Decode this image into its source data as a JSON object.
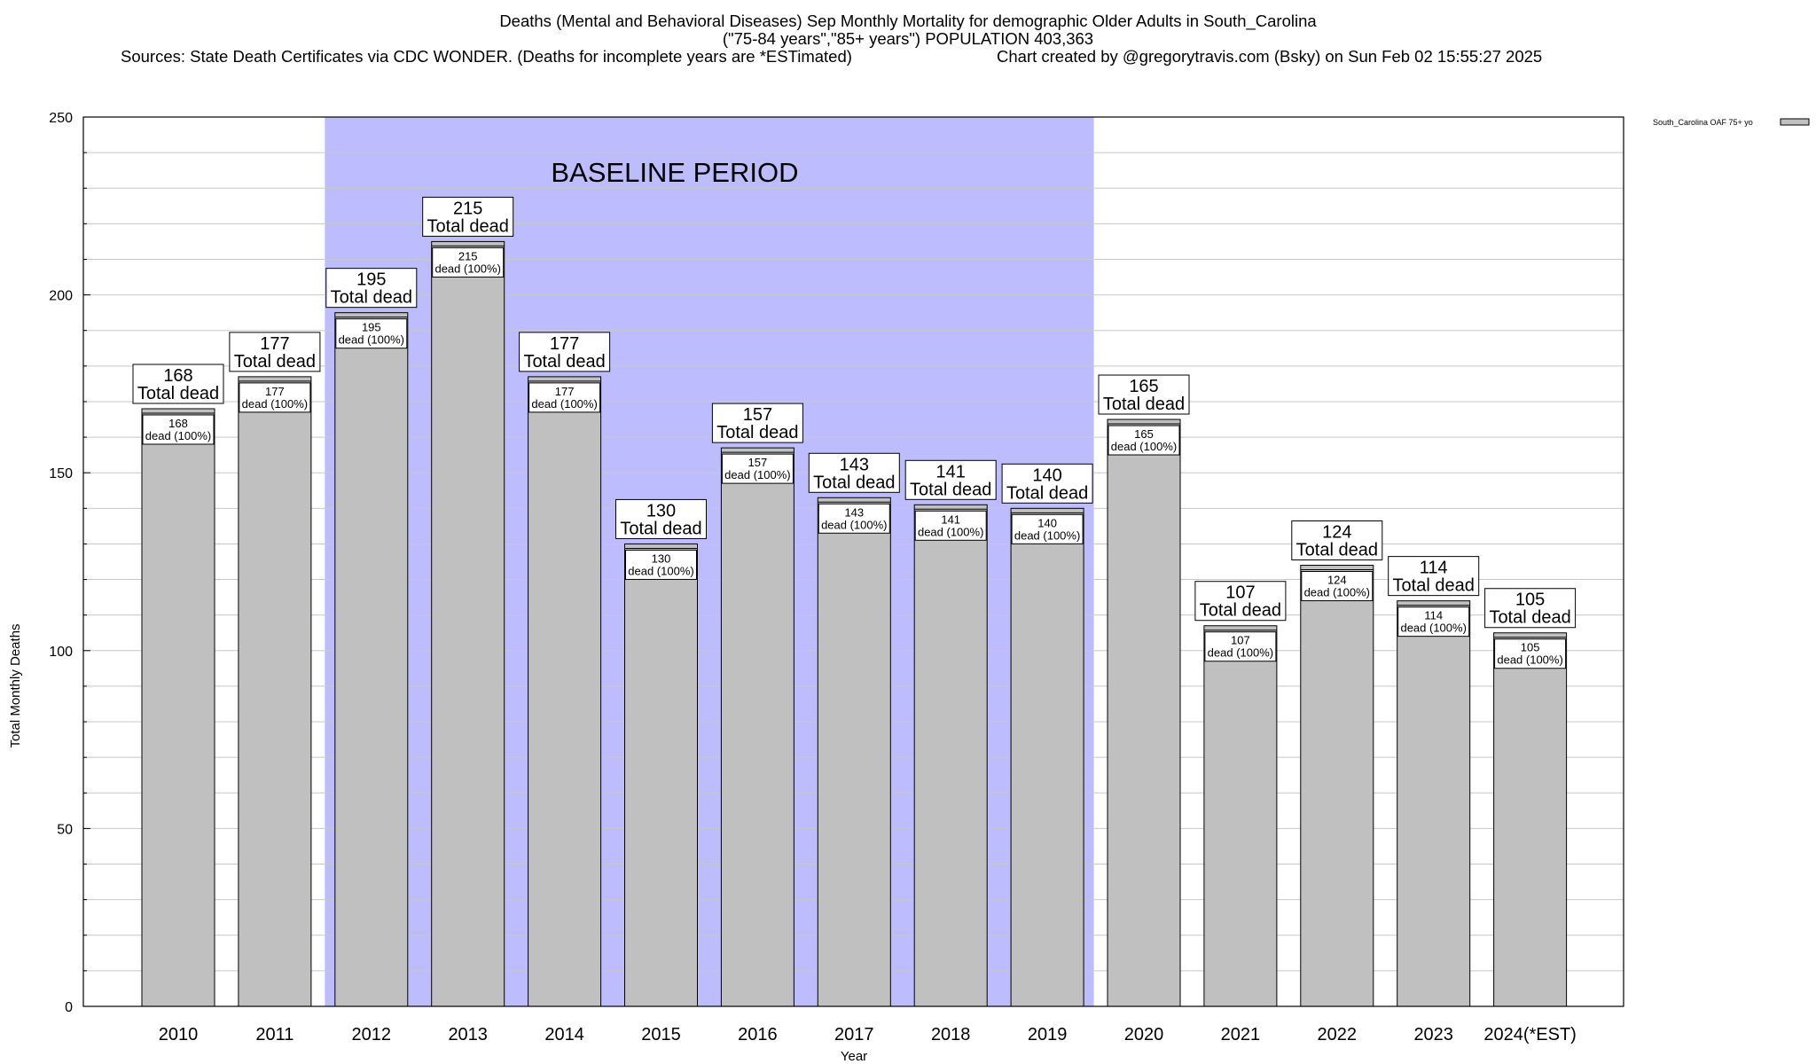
{
  "header": {
    "title_line1": "Deaths (Mental and Behavioral Diseases) Sep Monthly Mortality for demographic Older Adults in South_Carolina",
    "title_line2": "(\"75-84 years\",\"85+ years\") POPULATION 403,363",
    "sources": "Sources: State Death Certificates via CDC WONDER. (Deaths for incomplete years are *ESTimated)",
    "credit": "Chart created by @gregorytravis.com (Bsky) on Sun Feb 02 15:55:27 2025"
  },
  "chart_data": {
    "type": "bar",
    "xlabel": "Year",
    "ylabel": "Total Monthly Deaths",
    "ylim": [
      0,
      250
    ],
    "yticks": [
      0,
      50,
      100,
      150,
      200,
      250
    ],
    "grid": true,
    "legend_position": "top-right",
    "categories": [
      "2010",
      "2011",
      "2012",
      "2013",
      "2014",
      "2015",
      "2016",
      "2017",
      "2018",
      "2019",
      "2020",
      "2021",
      "2022",
      "2023",
      "2024(*EST)"
    ],
    "series": [
      {
        "name": "South_Carolina OAF 75+ yo",
        "color": "#c0c0c0",
        "values": [
          168,
          177,
          195,
          215,
          177,
          130,
          157,
          143,
          141,
          140,
          165,
          107,
          124,
          114,
          105
        ]
      }
    ],
    "outer_label_text": "Total dead",
    "inner_label_text": "dead (100%)",
    "baseline": {
      "label": "BASELINE PERIOD",
      "start": "2012",
      "end": "2019",
      "color": "#bcbcff"
    }
  }
}
